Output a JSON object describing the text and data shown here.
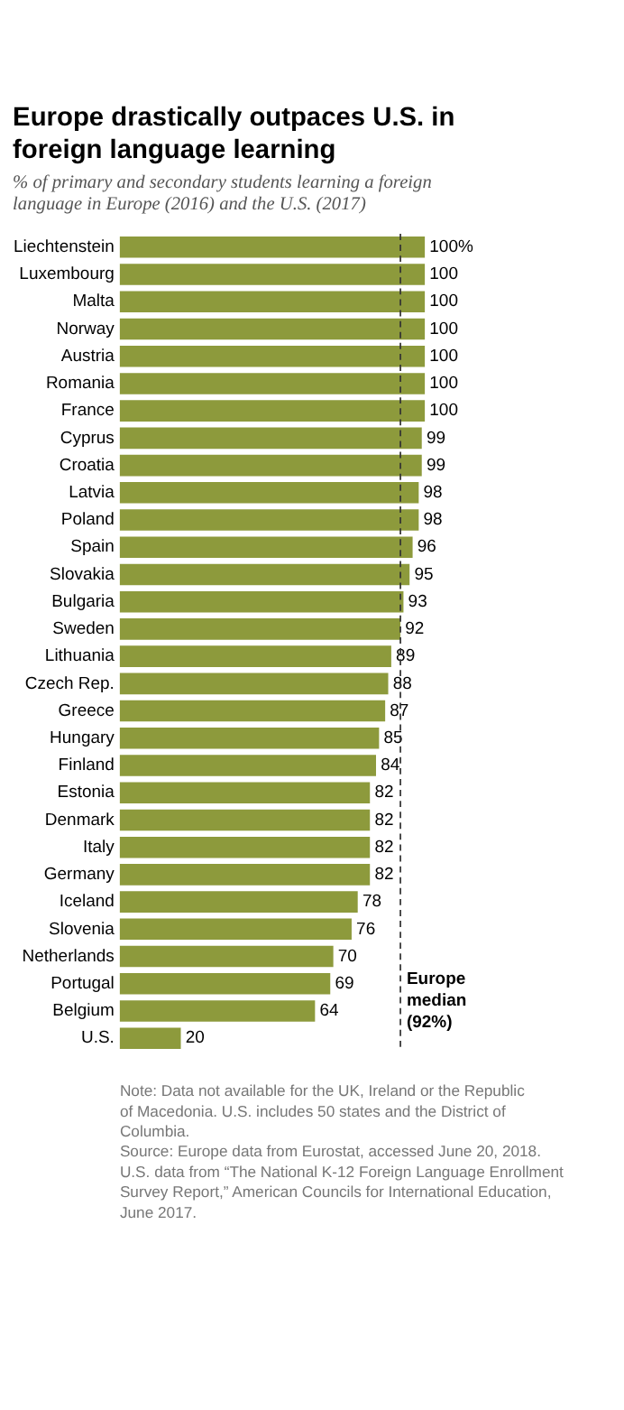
{
  "chart_data": {
    "type": "bar",
    "orientation": "horizontal",
    "title": "Europe drastically outpaces U.S. in foreign language learning",
    "subtitle": "% of primary and secondary students learning a foreign language in Europe (2016) and the U.S. (2017)",
    "categories": [
      "Liechtenstein",
      "Luxembourg",
      "Malta",
      "Norway",
      "Austria",
      "Romania",
      "France",
      "Cyprus",
      "Croatia",
      "Latvia",
      "Poland",
      "Spain",
      "Slovakia",
      "Bulgaria",
      "Sweden",
      "Lithuania",
      "Czech Rep.",
      "Greece",
      "Hungary",
      "Finland",
      "Estonia",
      "Denmark",
      "Italy",
      "Germany",
      "Iceland",
      "Slovenia",
      "Netherlands",
      "Portugal",
      "Belgium",
      "U.S."
    ],
    "values": [
      100,
      100,
      100,
      100,
      100,
      100,
      100,
      99,
      99,
      98,
      98,
      96,
      95,
      93,
      92,
      89,
      88,
      87,
      85,
      84,
      82,
      82,
      82,
      82,
      78,
      76,
      70,
      69,
      64,
      20
    ],
    "value_labels": [
      "100%",
      "100",
      "100",
      "100",
      "100",
      "100",
      "100",
      "99",
      "99",
      "98",
      "98",
      "96",
      "95",
      "93",
      "92",
      "89",
      "88",
      "87",
      "85",
      "84",
      "82",
      "82",
      "82",
      "82",
      "78",
      "76",
      "70",
      "69",
      "64",
      "20"
    ],
    "color": "#8d9a3c",
    "tick_labels": "y",
    "ref_lines": [
      {
        "axis": "x",
        "value": 92,
        "label": "Europe median (92%)",
        "color": "#333333",
        "line_style": "dashed"
      }
    ],
    "annotations": [
      "Note: Data not available for the UK, Ireland or the Republic of Macedonia. U.S. includes 50 states and the District of Columbia.",
      "Source: Europe data from Eurostat, accessed June 20, 2018. U.S. data from “The National K-12 Foreign Language Enrollment Survey Report,” American Councils for International Education, June 2017."
    ]
  }
}
